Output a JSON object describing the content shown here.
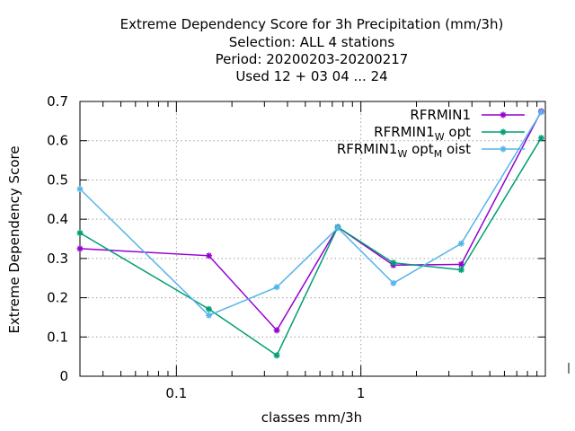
{
  "chart_data": {
    "type": "line",
    "title_lines": [
      "Extreme Dependency Score  for 3h Precipitation (mm/3h)",
      "Selection: ALL      4 stations",
      "Period: 20200203-20200217",
      "Used  12 + 03 04 ... 24"
    ],
    "xlabel": "classes mm/3h",
    "ylabel": "Extreme Dependency Score",
    "x_scale": "log",
    "xlim": [
      0.03,
      10
    ],
    "ylim": [
      0,
      0.7
    ],
    "grid": true,
    "legend_position": "top-right",
    "x_tick_labels": [
      {
        "value": 0.1,
        "label": "0.1"
      },
      {
        "value": 1,
        "label": "1"
      }
    ],
    "y_ticks": [
      {
        "value": 0,
        "label": "0"
      },
      {
        "value": 0.1,
        "label": "0.1"
      },
      {
        "value": 0.2,
        "label": "0.2"
      },
      {
        "value": 0.3,
        "label": "0.3"
      },
      {
        "value": 0.4,
        "label": "0.4"
      },
      {
        "value": 0.5,
        "label": "0.5"
      },
      {
        "value": 0.6,
        "label": "0.6"
      },
      {
        "value": 0.7,
        "label": "0.7"
      }
    ],
    "x": [
      0.03,
      0.15,
      0.35,
      0.75,
      1.5,
      3.5,
      9.5
    ],
    "series": [
      {
        "name_main": "RFRMIN1",
        "name_sub": "",
        "name_tail": "",
        "name_sub2": "",
        "name_tail2": "",
        "color": "#9400d3",
        "values": [
          0.325,
          0.307,
          0.117,
          0.38,
          0.283,
          0.285,
          0.675
        ]
      },
      {
        "name_main": "RFRMIN1",
        "name_sub": "W",
        "name_tail": "opt",
        "name_sub2": "",
        "name_tail2": "",
        "color": "#009e73",
        "values": [
          0.365,
          0.171,
          0.053,
          0.38,
          0.289,
          0.271,
          0.607
        ]
      },
      {
        "name_main": "RFRMIN1",
        "name_sub": "W",
        "name_tail": "opt",
        "name_sub2": "M",
        "name_tail2": "oist",
        "color": "#56b4e9",
        "values": [
          0.477,
          0.155,
          0.227,
          0.378,
          0.237,
          0.338,
          0.673
        ]
      }
    ]
  }
}
